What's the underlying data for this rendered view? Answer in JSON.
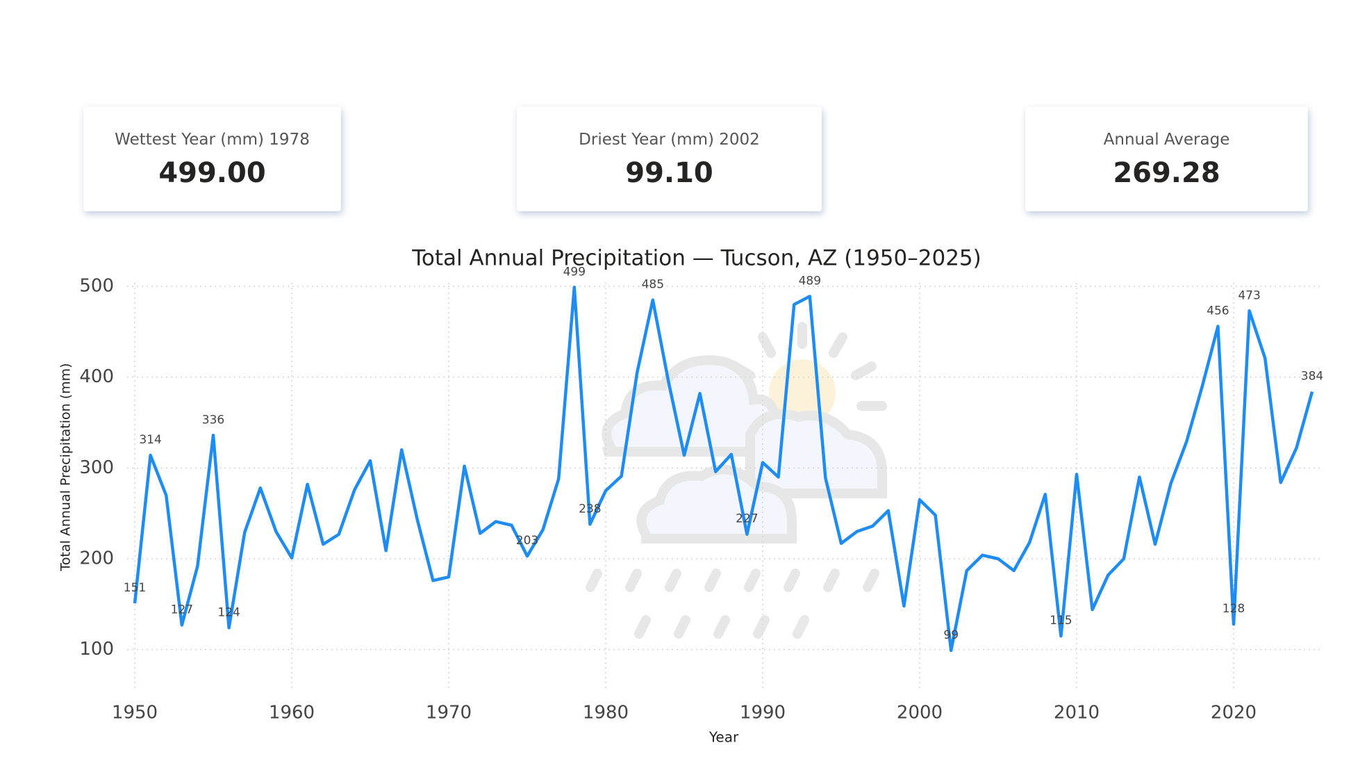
{
  "kpis": [
    {
      "label": "Wettest Year (mm) 1978",
      "value": "499.00"
    },
    {
      "label": "Driest Year (mm) 2002",
      "value": "99.10"
    },
    {
      "label": "Annual Average",
      "value": "269.28"
    }
  ],
  "chart_data": {
    "type": "line",
    "title": "Total Annual Precipitation — Tucson, AZ (1950–2025)",
    "x_label": "Year",
    "y_label": "Total Annual Precipitation (mm)",
    "x": [
      1950,
      1951,
      1952,
      1953,
      1954,
      1955,
      1956,
      1957,
      1958,
      1959,
      1960,
      1961,
      1962,
      1963,
      1964,
      1965,
      1966,
      1967,
      1968,
      1969,
      1970,
      1971,
      1972,
      1973,
      1974,
      1975,
      1976,
      1977,
      1978,
      1979,
      1980,
      1981,
      1982,
      1983,
      1984,
      1985,
      1986,
      1987,
      1988,
      1989,
      1990,
      1991,
      1992,
      1993,
      1994,
      1995,
      1996,
      1997,
      1998,
      1999,
      2000,
      2001,
      2002,
      2003,
      2004,
      2005,
      2006,
      2007,
      2008,
      2009,
      2010,
      2011,
      2012,
      2013,
      2014,
      2015,
      2016,
      2017,
      2018,
      2019,
      2020,
      2021,
      2022,
      2023,
      2024,
      2025
    ],
    "series": [
      {
        "name": "Total Annual Precipitation (mm)",
        "color": "#1e8cf0",
        "values": [
          151,
          314,
          270,
          127,
          192,
          336,
          124,
          229,
          278,
          230,
          201,
          282,
          216,
          227,
          276,
          308,
          209,
          320,
          243,
          176,
          180,
          302,
          228,
          241,
          237,
          203,
          232,
          288,
          499,
          238,
          275,
          291,
          405,
          485,
          395,
          314,
          382,
          296,
          315,
          227,
          306,
          290,
          480,
          489,
          289,
          217,
          230,
          236,
          253,
          148,
          265,
          248,
          99.1,
          187,
          204,
          200,
          187,
          218,
          271,
          115,
          293,
          144,
          182,
          200,
          290,
          216,
          283,
          329,
          390,
          456,
          128,
          473,
          421,
          284,
          322,
          384
        ],
        "value_labels": [
          "151",
          "314",
          null,
          "127",
          null,
          "336",
          "124",
          null,
          null,
          null,
          null,
          null,
          null,
          null,
          null,
          null,
          null,
          null,
          null,
          null,
          null,
          null,
          null,
          null,
          null,
          "203",
          null,
          null,
          "499",
          "238",
          null,
          null,
          null,
          "485",
          null,
          null,
          null,
          null,
          null,
          "227",
          null,
          null,
          null,
          "489",
          null,
          null,
          null,
          null,
          null,
          null,
          null,
          null,
          "99",
          null,
          null,
          null,
          null,
          null,
          null,
          "115",
          null,
          null,
          null,
          null,
          null,
          null,
          null,
          null,
          null,
          "456",
          "128",
          "473",
          null,
          null,
          null,
          "384"
        ]
      }
    ],
    "xlim": [
      1950,
      2025
    ],
    "xticks": [
      1950,
      1960,
      1970,
      1980,
      1990,
      2000,
      2010,
      2020
    ],
    "ylim": [
      50,
      500
    ],
    "yticks": [
      100,
      200,
      300,
      400,
      500
    ],
    "grid": true
  }
}
